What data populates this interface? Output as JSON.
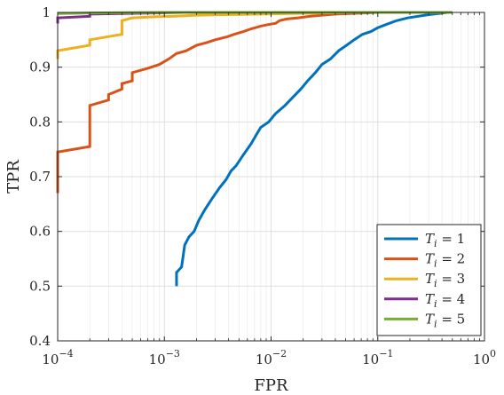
{
  "chart_data": {
    "type": "line",
    "title": "",
    "xlabel": "FPR",
    "ylabel": "TPR",
    "xscale": "log",
    "xlim": [
      0.0001,
      1
    ],
    "ylim": [
      0.4,
      1
    ],
    "grid": true,
    "minor_grid": true,
    "legend_position": "bottom-right",
    "x_tick_labels": [
      {
        "base": "10",
        "exp": "−4",
        "value": 0.0001
      },
      {
        "base": "10",
        "exp": "−3",
        "value": 0.001
      },
      {
        "base": "10",
        "exp": "−2",
        "value": 0.01
      },
      {
        "base": "10",
        "exp": "−1",
        "value": 0.1
      },
      {
        "base": "10",
        "exp": "0",
        "value": 1
      }
    ],
    "y_ticks": [
      0.4,
      0.5,
      0.6,
      0.7,
      0.8,
      0.9,
      1
    ],
    "y_tick_labels": [
      "0.4",
      "0.5",
      "0.6",
      "0.7",
      "0.8",
      "0.9",
      "1"
    ],
    "series": [
      {
        "name": "T_i = 1",
        "legend_main": "T",
        "legend_sub": "i",
        "legend_rhs": "= 1",
        "color": "#0072BD",
        "x": [
          0.0013,
          0.0013,
          0.00145,
          0.0015,
          0.00155,
          0.0017,
          0.0019,
          0.0021,
          0.0024,
          0.0028,
          0.0033,
          0.0038,
          0.0042,
          0.0047,
          0.0055,
          0.0065,
          0.0072,
          0.008,
          0.0095,
          0.011,
          0.0135,
          0.016,
          0.019,
          0.022,
          0.026,
          0.03,
          0.036,
          0.043,
          0.051,
          0.06,
          0.072,
          0.086,
          0.1,
          0.12,
          0.15,
          0.19,
          0.24,
          0.3,
          0.37,
          0.45,
          0.5
        ],
        "y": [
          0.5,
          0.525,
          0.535,
          0.555,
          0.575,
          0.59,
          0.6,
          0.62,
          0.64,
          0.66,
          0.68,
          0.695,
          0.71,
          0.72,
          0.74,
          0.76,
          0.775,
          0.79,
          0.8,
          0.815,
          0.83,
          0.845,
          0.86,
          0.875,
          0.89,
          0.905,
          0.915,
          0.93,
          0.94,
          0.95,
          0.96,
          0.965,
          0.972,
          0.978,
          0.985,
          0.99,
          0.993,
          0.996,
          0.998,
          1.0,
          1.0
        ]
      },
      {
        "name": "T_i = 2",
        "legend_main": "T",
        "legend_sub": "i",
        "legend_rhs": "= 2",
        "color": "#D95319",
        "x": [
          0.0001,
          0.0001,
          0.0002,
          0.0002,
          0.0003,
          0.0003,
          0.0004,
          0.0004,
          0.0005,
          0.0005,
          0.0007,
          0.0009,
          0.0011,
          0.0013,
          0.0016,
          0.002,
          0.0025,
          0.003,
          0.0038,
          0.0045,
          0.0055,
          0.0065,
          0.008,
          0.0095,
          0.011,
          0.012,
          0.014,
          0.018,
          0.023,
          0.03,
          0.04,
          0.055,
          0.075,
          0.1,
          0.15,
          0.3,
          0.5
        ],
        "y": [
          0.67,
          0.745,
          0.755,
          0.83,
          0.84,
          0.85,
          0.86,
          0.87,
          0.875,
          0.89,
          0.898,
          0.905,
          0.915,
          0.925,
          0.93,
          0.94,
          0.945,
          0.95,
          0.955,
          0.96,
          0.965,
          0.97,
          0.975,
          0.978,
          0.98,
          0.985,
          0.988,
          0.99,
          0.993,
          0.995,
          0.997,
          0.998,
          0.999,
          1.0,
          1.0,
          1.0,
          1.0
        ]
      },
      {
        "name": "T_i = 3",
        "legend_main": "T",
        "legend_sub": "i",
        "legend_rhs": "= 3",
        "color": "#EDB120",
        "x": [
          0.0001,
          0.0001,
          0.0002,
          0.0002,
          0.0004,
          0.0004,
          0.0005,
          0.0008,
          0.0012,
          0.002,
          0.004,
          0.008,
          0.015,
          0.03,
          0.06,
          0.1,
          0.2,
          0.5
        ],
        "y": [
          0.915,
          0.93,
          0.94,
          0.95,
          0.96,
          0.985,
          0.99,
          0.992,
          0.993,
          0.995,
          0.996,
          0.997,
          0.998,
          0.999,
          1.0,
          1.0,
          1.0,
          1.0
        ]
      },
      {
        "name": "T_i = 4",
        "legend_main": "T",
        "legend_sub": "i",
        "legend_rhs": "= 4",
        "color": "#7E2F8E",
        "x": [
          0.0001,
          0.0001,
          0.0002,
          0.0002,
          0.0004,
          0.0008,
          0.0015,
          0.003,
          0.01,
          0.05,
          0.2,
          0.5
        ],
        "y": [
          0.98,
          0.99,
          0.993,
          0.997,
          0.998,
          0.999,
          1.0,
          1.0,
          1.0,
          1.0,
          1.0,
          1.0
        ]
      },
      {
        "name": "T_i = 5",
        "legend_main": "T",
        "legend_sub": "i",
        "legend_rhs": "= 5",
        "color": "#77AC30",
        "x": [
          0.0001,
          0.0002,
          0.001,
          0.01,
          0.1,
          0.5
        ],
        "y": [
          0.998,
          0.999,
          1.0,
          1.0,
          1.0,
          1.0
        ]
      }
    ]
  }
}
